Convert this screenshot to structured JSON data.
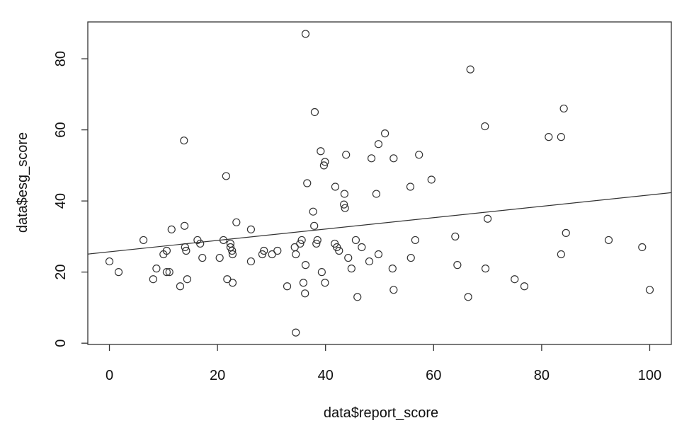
{
  "chart_data": {
    "type": "scatter",
    "x_label": "data$report_score",
    "y_label": "data$esg_score",
    "x": [
      0,
      1.7,
      6.3,
      8.1,
      8.7,
      10,
      10.6,
      10.6,
      11.1,
      11.5,
      13.1,
      13.8,
      13.9,
      14,
      14.2,
      14.4,
      16.3,
      16.8,
      17.2,
      20.4,
      21.1,
      21.6,
      21.8,
      22.4,
      22.4,
      22.7,
      22.8,
      22.8,
      23.5,
      26.2,
      26.2,
      28.3,
      28.6,
      30.1,
      31.1,
      32.9,
      34.3,
      34.5,
      34.5,
      35.3,
      35.6,
      35.9,
      36.2,
      36.3,
      36.3,
      36.6,
      37.7,
      37.9,
      38,
      38.3,
      38.5,
      39.1,
      39.3,
      39.7,
      39.9,
      39.9,
      41.7,
      41.8,
      42.1,
      42.5,
      43.4,
      43.5,
      43.6,
      43.8,
      44.2,
      44.8,
      45.6,
      45.9,
      46.7,
      48.1,
      48.5,
      49.4,
      49.8,
      49.8,
      51,
      52.4,
      52.6,
      52.6,
      55.8,
      55.7,
      56.6,
      57.3,
      59.6,
      64,
      64.4,
      66.4,
      66.8,
      69.5,
      69.6,
      70,
      75,
      76.8,
      81.3,
      83.6,
      83.6,
      84.1,
      84.5,
      92.4,
      98.6,
      100
    ],
    "values": [
      23,
      20,
      29,
      18,
      21,
      25,
      26,
      20,
      20,
      32,
      16,
      57,
      33,
      27,
      26,
      18,
      29,
      28,
      24,
      24,
      29,
      47,
      18,
      28,
      27,
      26,
      25,
      17,
      34,
      32,
      23,
      25,
      26,
      25,
      26,
      16,
      27,
      25,
      3,
      28,
      29,
      17,
      14,
      87,
      22,
      45,
      37,
      33,
      65,
      28,
      29,
      54,
      20,
      50,
      51,
      17,
      28,
      44,
      27,
      26,
      39,
      42,
      38,
      53,
      24,
      21,
      29,
      13,
      27,
      23,
      52,
      42,
      56,
      25,
      59,
      21,
      52,
      15,
      24,
      44,
      29,
      53,
      46,
      30,
      22,
      13,
      77,
      61,
      21,
      35,
      18,
      16,
      58,
      58,
      25,
      66,
      31,
      29,
      27,
      15
    ],
    "fit": {
      "intercept": 25.7,
      "slope": 0.16
    },
    "color": "#333333",
    "xlim": [
      -4,
      104
    ],
    "ylim": [
      -0.36,
      90.36
    ],
    "xticks": [
      0,
      20,
      40,
      60,
      80,
      100
    ],
    "yticks": [
      0,
      20,
      40,
      60,
      80
    ]
  }
}
